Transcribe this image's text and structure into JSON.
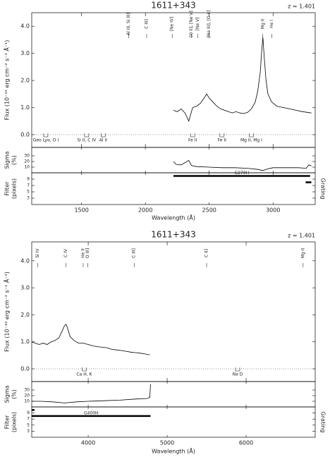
{
  "chart_data": [
    {
      "type": "line",
      "title": "1611+343",
      "subtitle": "z = 1.401",
      "x_label": "Wavelength (Å)",
      "y_label": "Flux (10⁻¹⁵ erg cm⁻² s⁻¹ Å⁻¹)",
      "sigma_label": [
        "Sigma",
        "(%)"
      ],
      "filter_label": [
        "Filter",
        "(pixels)"
      ],
      "grating_label": "Grating",
      "xlim": [
        1110,
        3330
      ],
      "xticks": [
        1500,
        2000,
        2500,
        3000
      ],
      "ylim": [
        -0.47,
        4.5
      ],
      "yticks": [
        {
          "value": 0,
          "label": "0.0"
        },
        {
          "value": 1,
          "label": "1.0"
        },
        {
          "value": 2,
          "label": "2.0"
        },
        {
          "value": 3,
          "label": "3.0"
        },
        {
          "value": 4,
          "label": "4.0"
        }
      ],
      "sigma_ylim": [
        0,
        45
      ],
      "sigma_yticks": [
        10,
        20,
        30
      ],
      "filter_ylim": [
        1,
        11
      ],
      "filter_yticks": [
        3,
        5,
        7,
        9
      ],
      "color": "#000000",
      "x": [
        2220,
        2250,
        2280,
        2310,
        2340,
        2370,
        2400,
        2430,
        2460,
        2480,
        2500,
        2530,
        2560,
        2590,
        2620,
        2650,
        2680,
        2710,
        2740,
        2770,
        2800,
        2830,
        2860,
        2880,
        2900,
        2910,
        2920,
        2930,
        2945,
        2960,
        2990,
        3030,
        3080,
        3130,
        3180,
        3230,
        3300
      ],
      "values": [
        0.9,
        0.85,
        0.95,
        0.8,
        0.5,
        1.0,
        1.05,
        1.15,
        1.35,
        1.5,
        1.35,
        1.2,
        1.05,
        0.95,
        0.9,
        0.85,
        0.8,
        0.85,
        0.8,
        0.78,
        0.82,
        0.95,
        1.2,
        1.6,
        2.3,
        3.0,
        3.6,
        2.9,
        2.0,
        1.5,
        1.2,
        1.05,
        1.0,
        0.95,
        0.9,
        0.85,
        0.8
      ],
      "sigma_x": [
        2220,
        2240,
        2280,
        2340,
        2360,
        2400,
        2500,
        2600,
        2700,
        2800,
        2880,
        2920,
        2960,
        3000,
        3100,
        3200,
        3260,
        3280,
        3300
      ],
      "sigma": [
        20,
        15,
        14,
        22,
        13,
        11,
        10,
        9,
        9,
        8,
        6,
        4,
        7,
        9,
        9,
        9,
        8,
        14,
        12
      ],
      "grating": {
        "name": "G270H",
        "y": 10,
        "x": [
          2220,
          3290
        ]
      },
      "filter": {
        "y": 8,
        "x": [
          3255,
          3300
        ]
      },
      "emission_lines": [
        {
          "label": "Al III, Si III]",
          "x": 1868
        },
        {
          "label": "C III]",
          "x": 2010
        },
        {
          "label": "[Ne IV]",
          "x": 2210
        },
        {
          "label": "[O II], [Ne V]",
          "x": 2360
        },
        {
          "label": "[Ne V]",
          "x": 2410
        },
        {
          "label": "[Ne III], [O II]",
          "x": 2500
        },
        {
          "label": "Mg II",
          "x": 2920
        },
        {
          "label": "He I",
          "x": 2990
        }
      ],
      "absorption_lines": [
        {
          "label": "Geo Lyα, O I",
          "x": 1220
        },
        {
          "label": "Si II, C IV",
          "x": 1540
        },
        {
          "label": "Al II",
          "x": 1670
        },
        {
          "label": "Fe II",
          "x": 2370
        },
        {
          "label": "Fe II",
          "x": 2600
        },
        {
          "label": "Mg II, Mg I",
          "x": 2830
        }
      ]
    },
    {
      "type": "line",
      "title": "1611+343",
      "subtitle": "z = 1.401",
      "x_label": "Wavelength (Å)",
      "y_label": "Flux (10⁻¹⁵ erg cm⁻² s⁻¹ Å⁻¹)",
      "sigma_label": [
        "Sigma",
        "(%)"
      ],
      "filter_label": [
        "Filter",
        "(pixels)"
      ],
      "grating_label": "Grating",
      "xlim": [
        3285,
        6875
      ],
      "xticks": [
        4000,
        5000,
        6000
      ],
      "ylim": [
        -0.47,
        4.7
      ],
      "yticks": [
        {
          "value": 0,
          "label": "0.0"
        },
        {
          "value": 1,
          "label": "1.0"
        },
        {
          "value": 2,
          "label": "2.0"
        },
        {
          "value": 3,
          "label": "3.0"
        },
        {
          "value": 4,
          "label": "4.0"
        }
      ],
      "sigma_ylim": [
        0,
        45
      ],
      "sigma_yticks": [
        10,
        20,
        30
      ],
      "filter_ylim": [
        1,
        11
      ],
      "filter_yticks": [
        3,
        5,
        7,
        9
      ],
      "color": "#000000",
      "x": [
        3285,
        3330,
        3380,
        3430,
        3480,
        3530,
        3580,
        3630,
        3670,
        3700,
        3720,
        3740,
        3770,
        3820,
        3880,
        3940,
        4000,
        4060,
        4120,
        4180,
        4240,
        4300,
        4360,
        4420,
        4480,
        4540,
        4600,
        4660,
        4720,
        4780
      ],
      "values": [
        1.0,
        0.95,
        0.9,
        0.95,
        0.9,
        1.0,
        1.05,
        1.15,
        1.4,
        1.6,
        1.65,
        1.5,
        1.2,
        1.05,
        0.95,
        0.95,
        0.9,
        0.85,
        0.82,
        0.8,
        0.78,
        0.72,
        0.7,
        0.68,
        0.65,
        0.62,
        0.6,
        0.58,
        0.55,
        0.52
      ],
      "sigma_x": [
        3285,
        3400,
        3550,
        3700,
        3850,
        4000,
        4200,
        4400,
        4600,
        4750,
        4780,
        4790
      ],
      "sigma": [
        10,
        10,
        9,
        7,
        9,
        10,
        11,
        12,
        14,
        15,
        17,
        40
      ],
      "grating": {
        "name": "G400H",
        "y": 8,
        "x": [
          3285,
          4790
        ]
      },
      "filter": {
        "y": 10,
        "x": [
          3285,
          3320
        ]
      },
      "emission_lines": [
        {
          "label": "Si IV",
          "x": 3361
        },
        {
          "label": "C IV",
          "x": 3720
        },
        {
          "label": "He II",
          "x": 3937
        },
        {
          "label": "O III]",
          "x": 3994
        },
        {
          "label": "C III]",
          "x": 4582
        },
        {
          "label": "C II]",
          "x": 5500
        },
        {
          "label": "Mg II",
          "x": 6722
        }
      ],
      "absorption_lines": [
        {
          "label": "Ca H, K",
          "x": 3950
        },
        {
          "label": "Na D",
          "x": 5893
        }
      ]
    }
  ]
}
